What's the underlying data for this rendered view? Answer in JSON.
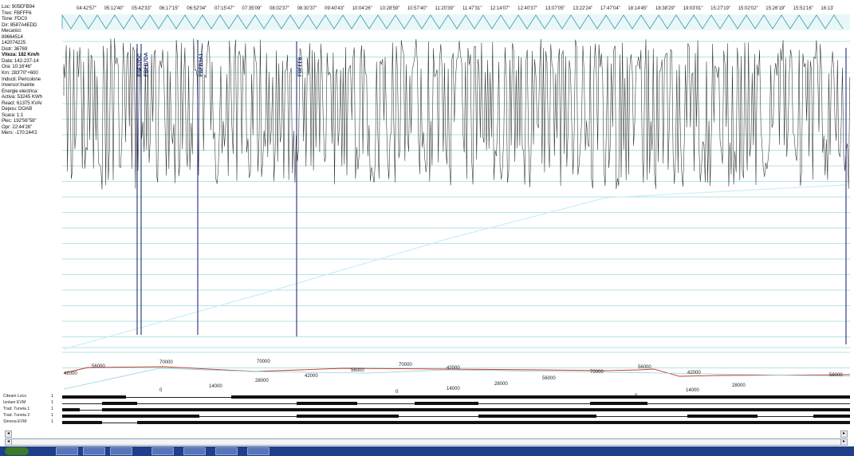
{
  "info_panel": {
    "loc": "Loc: 905EFB94",
    "tren": "Tren: FBFFF6",
    "tone": "Tone: FDC0",
    "dir": "Dir: 8587A4EDD",
    "mecanici_label": "Mecanici:",
    "mecanic1": "89664514",
    "mecanic2": "142074225",
    "dist": "Distr: 36769",
    "viteza": "Viteza: 182 Km/h",
    "data": "Data: 142-237-14",
    "ora": "Ora: 10:16'46\"",
    "km": "Km: 283'70\"+600",
    "inducti": "Inducti: Pericolone",
    "inversor": "Inversor:Inainte",
    "energie": "Energie electrica:",
    "activa": "Activa: 53245 KWh",
    "reacti": "React: 61375 KVAr",
    "depou": "Depou: DOAB",
    "scara": "Scara: 1:1",
    "plec": "Plec: 192'56\"58\"",
    "opr": "Opr: 22:44'26\"",
    "mers": "Mers: -170:244'2"
  },
  "time_labels": [
    "04:42'57\"",
    "05:12'40\"",
    "05:42'33\"",
    "06:17'15\"",
    "06:52'04\"",
    "07:15'47\"",
    "07:35'09\"",
    "08:02'37\"",
    "08:30'37\"",
    "09:40'43\"",
    "10:04'26\"",
    "10:28'59\"",
    "10:57'40\"",
    "11:20'39\"",
    "11:47'31\"",
    "12:14'07\"",
    "12:40'37\"",
    "13:07'05\"",
    "13:22'24\"",
    "17:47'04\"",
    "18:14'45\"",
    "18:38'29\"",
    "19:03'01\"",
    "15:27'19\"",
    "15:02'02\"",
    "15:26'19\"",
    "15:51'16\"",
    "16:13'"
  ],
  "marker_labels": [
    "FSF32DC",
    "FBFB7DA",
    "FBFB3A1",
    "FBFFF6"
  ],
  "altitude_labels": [
    "42000",
    "56000",
    "70000",
    "70000",
    "42000",
    "56000",
    "70000",
    "42000",
    "56000",
    "70000",
    "56000",
    "42000",
    "56000"
  ],
  "altitude_low_labels": [
    "0",
    "14000",
    "28000",
    "0",
    "14000",
    "28000",
    "0",
    "14000",
    "28000"
  ],
  "tracks": [
    {
      "label": "Citeam Loco",
      "num": "1"
    },
    {
      "label": "Izolare EVM",
      "num": "1"
    },
    {
      "label": "Trad. Tuneia 1",
      "num": "1"
    },
    {
      "label": "Trad. Tuneia 2",
      "num": "1"
    },
    {
      "label": "Sirrena EVM",
      "num": "1"
    }
  ],
  "colors": {
    "wave": "#2b2b2b",
    "grid": "#9fd9dd",
    "envelope": "#7fc6cf",
    "marker": "#233170",
    "altitude": "#c0392b",
    "taskbar": "#1f3f8a"
  }
}
